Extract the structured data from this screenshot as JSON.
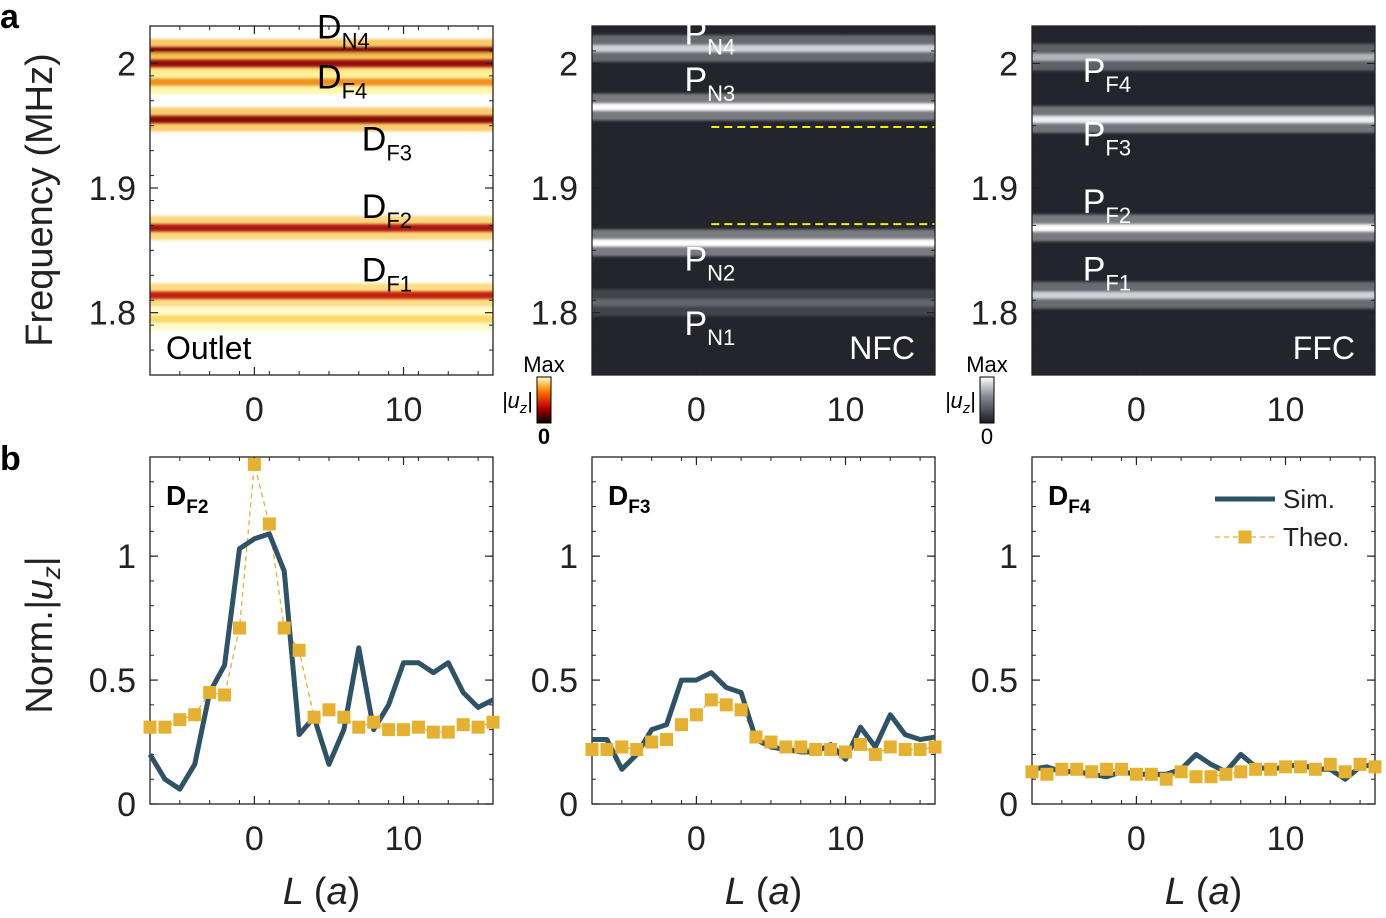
{
  "figure": {
    "panel_a_letter": "a",
    "panel_b_letter": "b",
    "y_axis_title_a": "Frequency (MHz)",
    "y_axis_title_b_main": "Norm.",
    "y_axis_title_b_var": "|u",
    "y_axis_title_b_sub": "z",
    "y_axis_title_b_end": "|",
    "x_axis_title_main": "L",
    "x_axis_title_unit": "(a)"
  },
  "colors": {
    "sim": "#2e5266",
    "theo": "#e6b030",
    "guide": "#f5f000",
    "hot_max": "#fff8b0",
    "hot_mid": "#e0301e",
    "hot_min": "#200000",
    "gray_max": "#ffffff",
    "gray_min": "#1a1a22"
  },
  "colorbars": {
    "hot": {
      "max": "Max",
      "min": "0",
      "label_main": "|u",
      "label_sub": "z",
      "label_end": "|"
    },
    "gray": {
      "max": "Max",
      "min": "0",
      "label_main": "|u",
      "label_sub": "z",
      "label_end": "|"
    }
  },
  "chart_data": [
    {
      "type": "heatmap",
      "panel": "a",
      "corner_label": "Outlet",
      "colormap": "hot",
      "xlim": [
        -7,
        16
      ],
      "ylim": [
        1.75,
        2.03
      ],
      "xticks": [
        0,
        10
      ],
      "yticks": [
        1.8,
        1.9,
        2.0
      ],
      "ytick_labels": [
        "1.8",
        "1.9",
        "2"
      ],
      "bands": [
        {
          "y": 2.01,
          "intensity": 1.0
        },
        {
          "y": 2.0,
          "intensity": 0.9
        },
        {
          "y": 1.985,
          "intensity": 0.55
        },
        {
          "y": 1.955,
          "intensity": 0.95
        },
        {
          "y": 1.868,
          "intensity": 0.85
        },
        {
          "y": 1.814,
          "intensity": 0.8
        },
        {
          "y": 1.795,
          "intensity": 0.35
        }
      ],
      "mode_labels": [
        {
          "main": "D",
          "sub": "N4",
          "x": 4.2,
          "y": 2.02
        },
        {
          "main": "D",
          "sub": "F4",
          "x": 4.2,
          "y": 1.98
        },
        {
          "main": "D",
          "sub": "F3",
          "x": 7.2,
          "y": 1.93
        },
        {
          "main": "D",
          "sub": "F2",
          "x": 7.2,
          "y": 1.876
        },
        {
          "main": "D",
          "sub": "F1",
          "x": 7.2,
          "y": 1.825
        }
      ]
    },
    {
      "type": "heatmap",
      "panel": "a",
      "corner_label": "NFC",
      "colormap": "gray",
      "xlim": [
        -7,
        16
      ],
      "ylim": [
        1.75,
        2.03
      ],
      "xticks": [
        0,
        10
      ],
      "yticks": [
        1.8,
        1.9,
        2.0
      ],
      "ytick_labels": [
        "1.8",
        "1.9",
        "2"
      ],
      "bands": [
        {
          "y": 2.012,
          "intensity": 0.75
        },
        {
          "y": 1.965,
          "intensity": 1.0
        },
        {
          "y": 1.856,
          "intensity": 1.0
        },
        {
          "y": 1.808,
          "intensity": 0.2
        }
      ],
      "guide_lines": [
        {
          "y": 1.949,
          "x_from": 1,
          "x_to": 16
        },
        {
          "y": 1.871,
          "x_from": 1,
          "x_to": 16
        }
      ],
      "mode_labels": [
        {
          "main": "P",
          "sub": "N4",
          "x": -0.8,
          "y": 2.015
        },
        {
          "main": "P",
          "sub": "N3",
          "x": -0.8,
          "y": 1.978
        },
        {
          "main": "P",
          "sub": "N2",
          "x": -0.8,
          "y": 1.834
        },
        {
          "main": "P",
          "sub": "N1",
          "x": -0.8,
          "y": 1.782
        }
      ]
    },
    {
      "type": "heatmap",
      "panel": "a",
      "corner_label": "FFC",
      "colormap": "gray",
      "xlim": [
        -7,
        16
      ],
      "ylim": [
        1.75,
        2.03
      ],
      "xticks": [
        0,
        10
      ],
      "yticks": [
        1.8,
        1.9,
        2.0
      ],
      "ytick_labels": [
        "1.8",
        "1.9",
        "2"
      ],
      "bands": [
        {
          "y": 2.005,
          "intensity": 0.6
        },
        {
          "y": 1.955,
          "intensity": 0.9
        },
        {
          "y": 1.868,
          "intensity": 1.0
        },
        {
          "y": 1.814,
          "intensity": 0.75
        }
      ],
      "mode_labels": [
        {
          "main": "P",
          "sub": "F4",
          "x": -3.6,
          "y": 1.985
        },
        {
          "main": "P",
          "sub": "F3",
          "x": -3.6,
          "y": 1.934
        },
        {
          "main": "P",
          "sub": "F2",
          "x": -3.6,
          "y": 1.88
        },
        {
          "main": "P",
          "sub": "F1",
          "x": -3.6,
          "y": 1.826
        }
      ]
    },
    {
      "type": "line",
      "panel": "b",
      "label_main": "D",
      "label_sub": "F2",
      "xlim": [
        -7,
        16
      ],
      "ylim": [
        0,
        1.4
      ],
      "xticks": [
        0,
        10
      ],
      "yticks": [
        0,
        0.5,
        1
      ],
      "ytick_labels": [
        "0",
        "0.5",
        "1"
      ],
      "x": [
        -7,
        -6,
        -5,
        -4,
        -3,
        -2,
        -1,
        0,
        1,
        2,
        3,
        4,
        5,
        6,
        7,
        8,
        9,
        10,
        11,
        12,
        13,
        14,
        15,
        16
      ],
      "series": [
        {
          "name": "Sim.",
          "values": [
            0.2,
            0.1,
            0.06,
            0.16,
            0.45,
            0.56,
            1.03,
            1.07,
            1.09,
            0.94,
            0.28,
            0.35,
            0.16,
            0.3,
            0.63,
            0.3,
            0.4,
            0.57,
            0.57,
            0.53,
            0.57,
            0.45,
            0.39,
            0.42
          ]
        },
        {
          "name": "Theo.",
          "values": [
            0.31,
            0.31,
            0.34,
            0.36,
            0.45,
            0.44,
            0.71,
            1.37,
            1.13,
            0.71,
            0.62,
            0.35,
            0.38,
            0.35,
            0.31,
            0.33,
            0.3,
            0.3,
            0.31,
            0.29,
            0.29,
            0.32,
            0.31,
            0.33
          ]
        }
      ]
    },
    {
      "type": "line",
      "panel": "b",
      "label_main": "D",
      "label_sub": "F3",
      "xlim": [
        -7,
        16
      ],
      "ylim": [
        0,
        1.4
      ],
      "xticks": [
        0,
        10
      ],
      "yticks": [
        0,
        0.5,
        1
      ],
      "ytick_labels": [
        "0",
        "0.5",
        "1"
      ],
      "x": [
        -7,
        -6,
        -5,
        -4,
        -3,
        -2,
        -1,
        0,
        1,
        2,
        3,
        4,
        5,
        6,
        7,
        8,
        9,
        10,
        11,
        12,
        13,
        14,
        15,
        16
      ],
      "series": [
        {
          "name": "Sim.",
          "values": [
            0.26,
            0.26,
            0.14,
            0.2,
            0.3,
            0.32,
            0.5,
            0.5,
            0.53,
            0.47,
            0.45,
            0.26,
            0.23,
            0.22,
            0.21,
            0.21,
            0.24,
            0.18,
            0.31,
            0.23,
            0.36,
            0.28,
            0.26,
            0.27
          ]
        },
        {
          "name": "Theo.",
          "values": [
            0.22,
            0.22,
            0.23,
            0.22,
            0.25,
            0.26,
            0.32,
            0.36,
            0.42,
            0.4,
            0.38,
            0.27,
            0.25,
            0.23,
            0.23,
            0.22,
            0.22,
            0.21,
            0.24,
            0.2,
            0.23,
            0.22,
            0.22,
            0.23
          ]
        }
      ]
    },
    {
      "type": "line",
      "panel": "b",
      "label_main": "D",
      "label_sub": "F4",
      "legend_position": "top-right",
      "xlim": [
        -7,
        16
      ],
      "ylim": [
        0,
        1.4
      ],
      "xticks": [
        0,
        10
      ],
      "yticks": [
        0,
        0.5,
        1
      ],
      "ytick_labels": [
        "0",
        "0.5",
        "1"
      ],
      "x": [
        -7,
        -6,
        -5,
        -4,
        -3,
        -2,
        -1,
        0,
        1,
        2,
        3,
        4,
        5,
        6,
        7,
        8,
        9,
        10,
        11,
        12,
        13,
        14,
        15,
        16
      ],
      "series": [
        {
          "name": "Sim.",
          "values": [
            0.14,
            0.15,
            0.13,
            0.13,
            0.12,
            0.11,
            0.13,
            0.12,
            0.12,
            0.12,
            0.14,
            0.2,
            0.16,
            0.13,
            0.2,
            0.15,
            0.14,
            0.15,
            0.16,
            0.14,
            0.14,
            0.1,
            0.15,
            0.16
          ]
        },
        {
          "name": "Theo.",
          "values": [
            0.13,
            0.12,
            0.14,
            0.14,
            0.13,
            0.14,
            0.14,
            0.12,
            0.12,
            0.1,
            0.13,
            0.11,
            0.11,
            0.12,
            0.13,
            0.14,
            0.14,
            0.15,
            0.15,
            0.14,
            0.16,
            0.13,
            0.16,
            0.15
          ]
        }
      ]
    }
  ]
}
